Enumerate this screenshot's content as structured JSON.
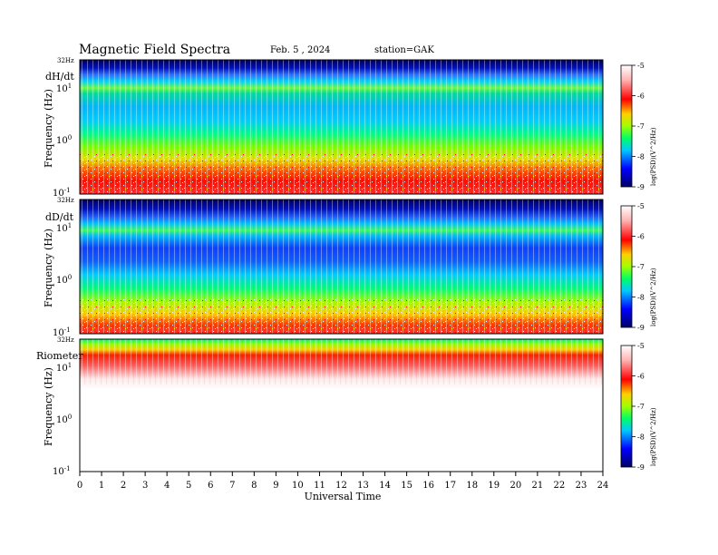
{
  "header": {
    "title": "Magnetic  Field  Spectra",
    "date": "Feb. 5  , 2024",
    "station": "station=GAK"
  },
  "chart_data": {
    "type": "heatmap",
    "xlabel": "Universal Time",
    "x_ticks": [
      "0",
      "1",
      "2",
      "3",
      "4",
      "5",
      "6",
      "7",
      "8",
      "9",
      "10",
      "11",
      "12",
      "13",
      "14",
      "15",
      "16",
      "17",
      "18",
      "19",
      "20",
      "21",
      "22",
      "23",
      "24"
    ],
    "xlim": [
      0,
      24
    ],
    "colorbar": {
      "label": "log(PSD)(V^2/Hz)",
      "ticks": [
        "-5",
        "-6",
        "-7",
        "-8",
        "-9"
      ],
      "range": [
        -9,
        -5
      ],
      "colors": [
        "#000066",
        "#0000ff",
        "#00c8ff",
        "#00ff66",
        "#a0ff00",
        "#ffd000",
        "#ff0000",
        "#ffb4b4",
        "#ffffff"
      ]
    },
    "panels": [
      {
        "name": "dH/dt",
        "ylabel": "Frequency  (Hz)",
        "ylim_label": "32Hz",
        "y_ticks": [
          {
            "base": "10",
            "exp": "1"
          },
          {
            "base": "10",
            "exp": "0"
          },
          {
            "base": "10",
            "exp": "-1"
          }
        ],
        "scale": "log"
      },
      {
        "name": "dD/dt",
        "ylabel": "Frequency  (Hz)",
        "ylim_label": "32Hz",
        "y_ticks": [
          {
            "base": "10",
            "exp": "1"
          },
          {
            "base": "10",
            "exp": "0"
          },
          {
            "base": "10",
            "exp": "-1"
          }
        ],
        "scale": "log"
      },
      {
        "name": "Riometer",
        "ylabel": "Frequency  (Hz)",
        "ylim_label": "32Hz",
        "y_ticks": [
          {
            "base": "10",
            "exp": "1"
          },
          {
            "base": "10",
            "exp": "0"
          },
          {
            "base": "10",
            "exp": "-1"
          }
        ],
        "scale": "log"
      }
    ]
  }
}
